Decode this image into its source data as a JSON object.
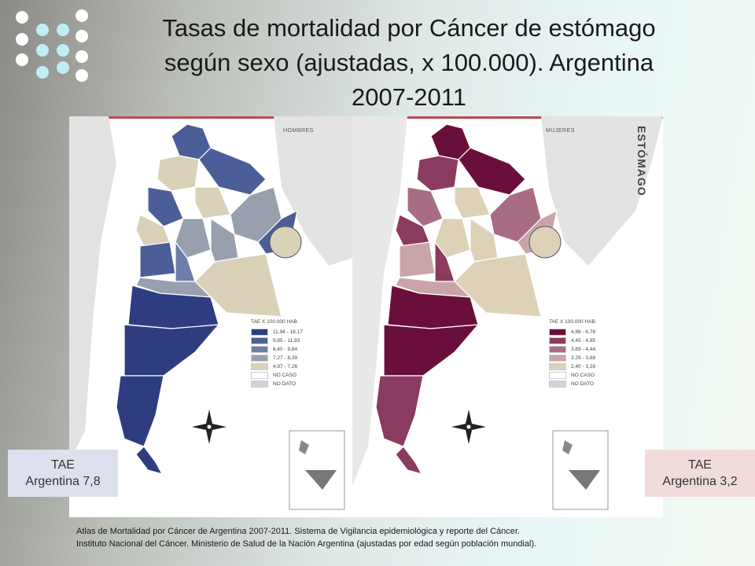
{
  "title": {
    "line1": "Tasas de mortalidad por Cáncer de estómago",
    "line2": "según sexo (ajustadas, x 100.000). Argentina",
    "line3": "2007-2011"
  },
  "map": {
    "side_label": "ESTÓMAGO",
    "left": {
      "label": "HOMBRES",
      "legend_title": "TAE X 100.000 HAB.",
      "legend": [
        {
          "range": "11,94 - 18,17",
          "color": "#2e3d80"
        },
        {
          "range": "9,85 - 11,93",
          "color": "#4c5e98"
        },
        {
          "range": "8,40 - 9,84",
          "color": "#6d7ea8"
        },
        {
          "range": "7,27 - 8,39",
          "color": "#98a0ae"
        },
        {
          "range": "4,97 - 7,26",
          "color": "#d9d1b8"
        },
        {
          "range": "NO CASO",
          "color": "#ffffff"
        },
        {
          "range": "NO DATO",
          "color": "#d2d4d8"
        }
      ]
    },
    "right": {
      "label": "MUJERES",
      "legend_title": "TAE X 100.000 HAB.",
      "legend": [
        {
          "range": "4,86 - 6,78",
          "color": "#6a0f3c"
        },
        {
          "range": "4,45 - 4,85",
          "color": "#8b3b60"
        },
        {
          "range": "3,89 - 4,44",
          "color": "#a86c84"
        },
        {
          "range": "3,29 - 3,88",
          "color": "#c9a5a9"
        },
        {
          "range": "2,40 - 3,28",
          "color": "#ddd2b8"
        },
        {
          "range": "NO CASO",
          "color": "#ffffff"
        },
        {
          "range": "NO DATO",
          "color": "#d2d4d8"
        }
      ]
    }
  },
  "tae_left": {
    "line1": "TAE",
    "line2": "Argentina 7,8"
  },
  "tae_right": {
    "line1": "TAE",
    "line2": "Argentina 3,2"
  },
  "source": {
    "line1": "Atlas de Mortalidad por Cáncer de Argentina 2007-2011.  Sistema de Vigilancia epidemiológica y reporte del Cáncer.",
    "line2": "Instituto Nacional del Cáncer. Ministerio de Salud de la Nación Argentina (ajustadas por edad según población mundial)."
  }
}
